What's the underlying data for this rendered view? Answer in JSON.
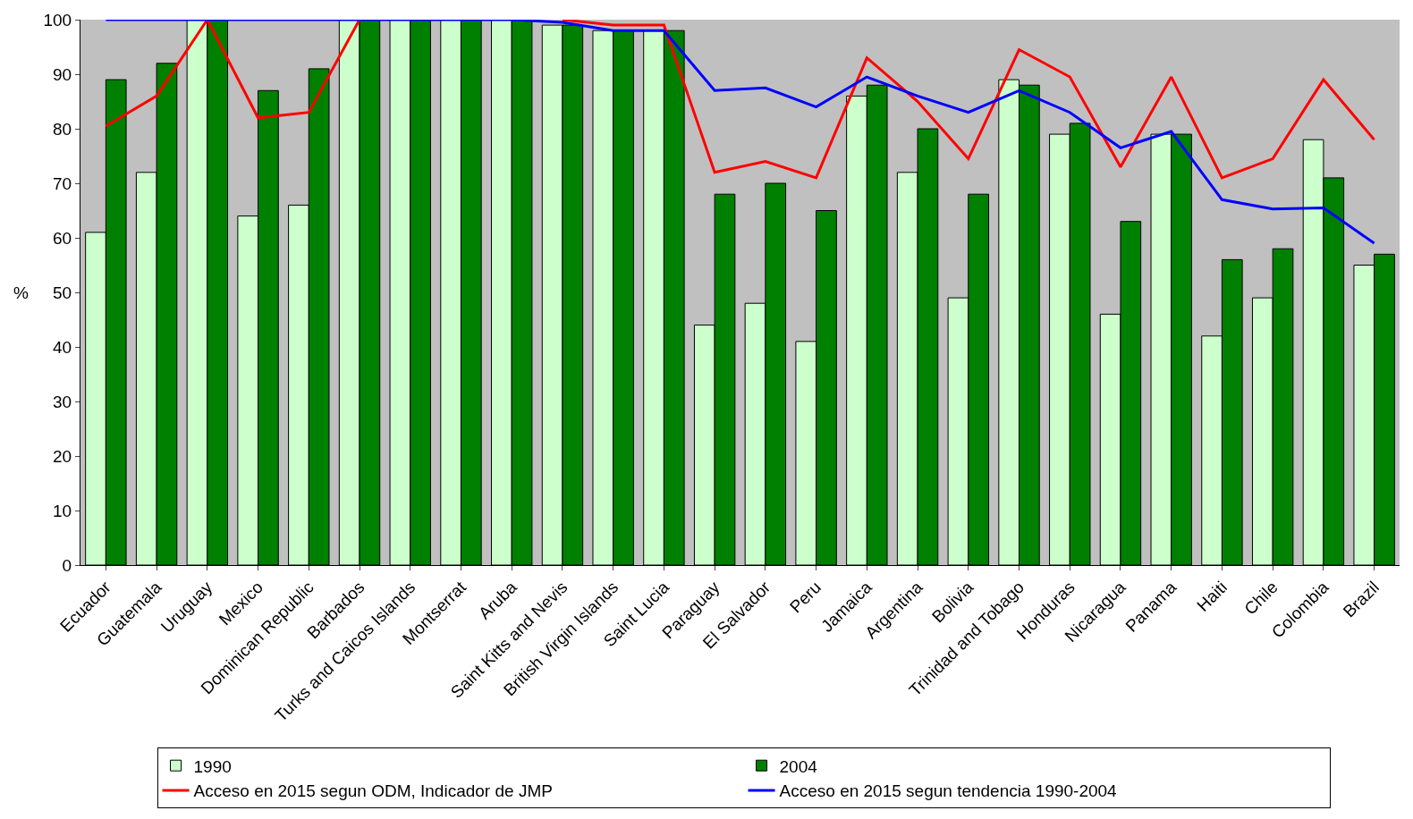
{
  "chart_data": {
    "type": "bar",
    "ylabel": "%",
    "categories": [
      "Ecuador",
      "Guatemala",
      "Uruguay",
      "Mexico",
      "Dominican Republic",
      "Barbados",
      "Turks and Caicos Islands",
      "Montserrat",
      "Aruba",
      "Saint Kitts and Nevis",
      "British Virgin Islands",
      "Saint Lucia",
      "Paraguay",
      "El Salvador",
      "Peru",
      "Jamaica",
      "Argentina",
      "Bolivia",
      "Trinidad and Tobago",
      "Honduras",
      "Nicaragua",
      "Panama",
      "Haiti",
      "Chile",
      "Colombia",
      "Brazil"
    ],
    "series": [
      {
        "name": "1990",
        "color": "#ccffcc",
        "values": [
          61,
          72,
          100,
          64,
          66,
          100,
          100,
          100,
          100,
          99,
          98,
          98,
          44,
          48,
          41,
          86,
          72,
          49,
          89,
          79,
          46,
          79,
          42,
          49,
          78,
          55
        ]
      },
      {
        "name": "2004",
        "color": "#008000",
        "values": [
          89,
          92,
          100,
          87,
          91,
          100,
          100,
          100,
          100,
          99,
          98,
          98,
          68,
          70,
          65,
          88,
          80,
          68,
          88,
          81,
          63,
          79,
          56,
          58,
          71,
          57
        ]
      },
      {
        "name": "Acceso en 2015 segun ODM, Indicador de JMP",
        "type": "line",
        "color": "#ff0000",
        "values": [
          80.5,
          86,
          100,
          82,
          83,
          100,
          null,
          null,
          null,
          100,
          99,
          99,
          72,
          74,
          71,
          93,
          85,
          74.5,
          94.5,
          89.5,
          73,
          89.5,
          71,
          74.5,
          89,
          78
        ]
      },
      {
        "name": "Acceso en 2015 segun tendencia 1990-2004",
        "type": "line",
        "color": "#0000ff",
        "values": [
          100,
          100,
          100,
          100,
          100,
          100,
          100,
          100,
          100,
          99.5,
          98,
          98,
          87,
          87.5,
          84,
          89.5,
          86,
          83,
          87,
          83,
          76.5,
          79.5,
          67,
          65.3,
          65.5,
          59
        ]
      }
    ],
    "ylim": [
      0,
      100
    ],
    "yticks": [
      0,
      10,
      20,
      30,
      40,
      50,
      60,
      70,
      80,
      90,
      100
    ],
    "grid": false,
    "legend": "bottom",
    "marker": "none",
    "line_style": "solid"
  }
}
